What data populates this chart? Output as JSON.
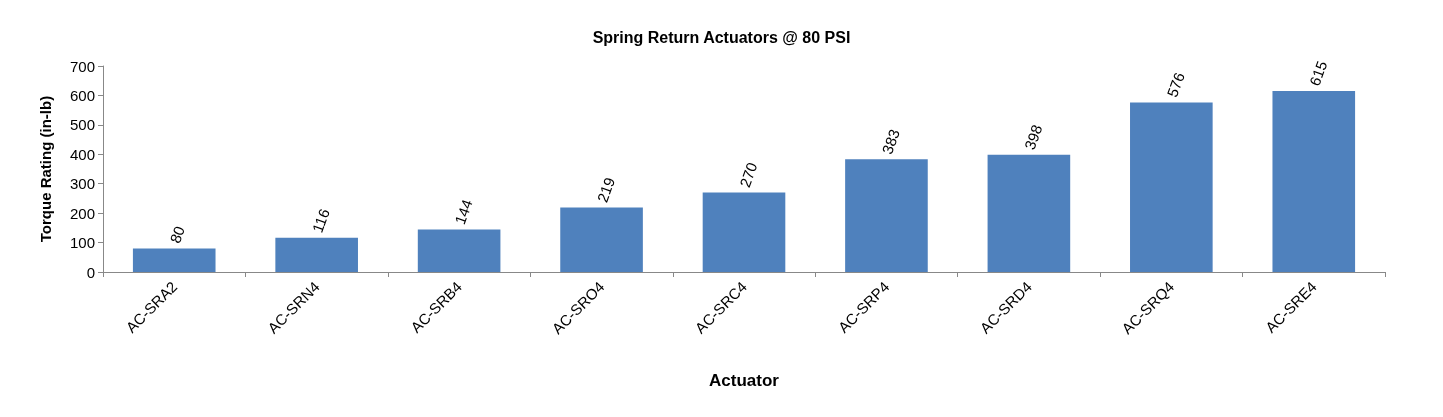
{
  "chart_data": {
    "type": "bar",
    "title": "Spring Return Actuators @ 80 PSI",
    "xlabel": "Actuator",
    "ylabel": "Torque Rating (in-lb)",
    "categories": [
      "AC-SRA2",
      "AC-SRN4",
      "AC-SRB4",
      "AC-SRO4",
      "AC-SRC4",
      "AC-SRP4",
      "AC-SRD4",
      "AC-SRQ4",
      "AC-SRE4"
    ],
    "values": [
      80,
      116,
      144,
      219,
      270,
      383,
      398,
      576,
      615
    ],
    "color": "#4f81bd",
    "ylim": [
      0,
      700
    ],
    "yticks": [
      0,
      100,
      200,
      300,
      400,
      500,
      600,
      700
    ],
    "grid": false,
    "data_labels": true
  }
}
